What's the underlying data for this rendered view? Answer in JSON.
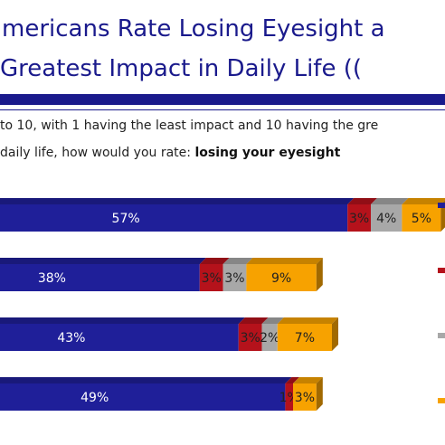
{
  "title": {
    "line1": "mericans Rate Losing Eyesight a",
    "line2": "Greatest Impact in Daily Life (("
  },
  "question": {
    "line1": "to 10, with 1 having the least impact and 10 having the gre",
    "line2_prefix": "daily life, how would you rate: ",
    "line2_bold": "losing your eyesight"
  },
  "colors": {
    "title": "#1a1a8c",
    "series": [
      "#1f1f99",
      "#b5121b",
      "#a8a8a8",
      "#f7a200"
    ]
  },
  "chart_data": {
    "type": "bar",
    "orientation": "horizontal",
    "stacked": true,
    "categories": [
      "",
      "",
      "",
      ""
    ],
    "series": [
      {
        "name": "",
        "values": [
          57,
          38,
          43,
          49
        ]
      },
      {
        "name": "",
        "values": [
          3,
          3,
          3,
          1
        ]
      },
      {
        "name": "",
        "values": [
          4,
          3,
          2,
          null
        ]
      },
      {
        "name": "",
        "values": [
          5,
          9,
          7,
          3
        ]
      }
    ],
    "labels": [
      [
        "57%",
        "3%",
        "4%",
        "5%"
      ],
      [
        "38%",
        "3%",
        "3%",
        "9%"
      ],
      [
        "43%",
        "3%",
        "2%",
        "7%"
      ],
      [
        "49%",
        "1%",
        "",
        "3%"
      ]
    ],
    "title": "",
    "xlabel": "",
    "ylabel": "",
    "legend": "right"
  }
}
